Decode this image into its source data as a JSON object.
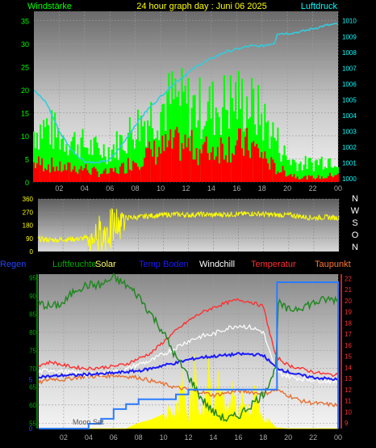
{
  "panel1": {
    "title": "24 hour graph day : Juni 06 2025",
    "left_label": "Windstärke",
    "right_label": "Luftdruck",
    "colors": {
      "title": "#ffff00",
      "left_label": "#00ff00",
      "right_label": "#00ffff",
      "gust": "#00ff00",
      "wind": "#ff0000",
      "pressure": "#33ccdd"
    }
  },
  "panel2": {
    "compass": [
      "N",
      "W",
      "S",
      "O",
      "N"
    ],
    "color": "#ffff00"
  },
  "panel3": {
    "labels": [
      {
        "text": "Regen",
        "color": "#2244ff"
      },
      {
        "text": "Luftfeuchte",
        "color": "#00aa00"
      },
      {
        "text": "Solar",
        "color": "#ffff66"
      },
      {
        "text": "Temp Boden",
        "color": "#1a1aff"
      },
      {
        "text": "Windchill",
        "color": "#ffffff"
      },
      {
        "text": "Temperatur",
        "color": "#ff3030"
      },
      {
        "text": "Taupunkt",
        "color": "#ff7733"
      }
    ],
    "moon_label": "Moon Set"
  },
  "chart_data": [
    {
      "type": "line",
      "x_ticks": [
        "02",
        "04",
        "06",
        "08",
        "10",
        "12",
        "14",
        "16",
        "18",
        "20",
        "22",
        "00"
      ],
      "y_left": {
        "ticks": [
          0,
          5,
          10,
          15,
          20,
          25,
          30,
          35
        ],
        "range": [
          0,
          37
        ]
      },
      "y_right": {
        "ticks": [
          1000,
          1001,
          1002,
          1003,
          1004,
          1005,
          1006,
          1007,
          1008,
          1009,
          1010
        ],
        "range": [
          999.8,
          1010.6
        ]
      },
      "series": [
        {
          "role": "pressure",
          "axis": "right",
          "x": [
            0,
            1,
            2,
            3,
            4,
            5,
            6,
            7,
            8,
            9,
            10,
            11,
            12,
            13,
            14,
            15,
            16,
            17,
            18,
            19,
            19.2,
            20,
            21,
            22,
            23,
            24
          ],
          "values": [
            1005.6,
            1004.8,
            1003.0,
            1001.8,
            1001.1,
            1001.0,
            1001.2,
            1002.2,
            1003.4,
            1004.4,
            1005.2,
            1006.0,
            1006.6,
            1007.2,
            1007.6,
            1008.0,
            1008.2,
            1008.4,
            1008.4,
            1008.6,
            1009.2,
            1009.2,
            1009.3,
            1009.5,
            1009.7,
            1009.8
          ]
        },
        {
          "role": "gust",
          "axis": "left",
          "x": [
            0,
            1,
            2,
            3,
            4,
            5,
            6,
            7,
            8,
            9,
            10,
            11,
            12,
            13,
            14,
            15,
            16,
            17,
            18,
            19,
            20,
            21,
            22,
            23,
            24
          ],
          "values": [
            11,
            12,
            10,
            9,
            8,
            7,
            7,
            9,
            12,
            14,
            16,
            18,
            17,
            16,
            16,
            17,
            18,
            17,
            14,
            10,
            5,
            4,
            4,
            5,
            5
          ]
        },
        {
          "role": "wind",
          "axis": "left",
          "x": [
            0,
            1,
            2,
            3,
            4,
            5,
            6,
            7,
            8,
            9,
            10,
            11,
            12,
            13,
            14,
            15,
            16,
            17,
            18,
            19,
            20,
            21,
            22,
            23,
            24
          ],
          "values": [
            4,
            4,
            3,
            3,
            3,
            2,
            2,
            3,
            5,
            6,
            7,
            8,
            8,
            7,
            7,
            8,
            8,
            8,
            6,
            3,
            2,
            1,
            1,
            1,
            2
          ]
        }
      ]
    },
    {
      "type": "line",
      "name": "",
      "y_ticks": [
        0,
        90,
        180,
        270,
        360
      ],
      "range": [
        0,
        360
      ],
      "x": [
        0,
        1,
        2,
        3,
        4,
        5,
        5.5,
        6,
        6.5,
        7,
        8,
        9,
        10,
        11,
        12,
        13,
        14,
        15,
        16,
        17,
        18,
        19,
        20,
        21,
        22,
        23,
        24
      ],
      "values": [
        85,
        80,
        82,
        85,
        92,
        95,
        150,
        120,
        200,
        230,
        235,
        245,
        250,
        255,
        250,
        255,
        250,
        255,
        255,
        260,
        255,
        250,
        250,
        240,
        230,
        235,
        230
      ]
    },
    {
      "type": "line",
      "y_left": {
        "ticks": [
          55,
          60,
          65,
          70,
          75,
          80,
          85,
          90,
          95
        ],
        "range": [
          53.5,
          96
        ]
      },
      "y_rain": {
        "ticks": [
          0,
          5
        ],
        "range": [
          0,
          15
        ]
      },
      "y_right": {
        "ticks": [
          9,
          10,
          11,
          12,
          13,
          14,
          15,
          16,
          17,
          18,
          19,
          20,
          21,
          22
        ],
        "range": [
          8.5,
          22.4
        ]
      },
      "series": [
        {
          "role": "humidity",
          "axis": "left",
          "x": [
            0,
            1,
            2,
            3,
            4,
            5,
            6,
            7,
            8,
            9,
            10,
            11,
            12,
            13,
            14,
            15,
            16,
            17,
            18,
            19,
            19.2,
            20,
            21,
            22,
            23,
            24
          ],
          "values": [
            88,
            87,
            88,
            92,
            93,
            93,
            95,
            93,
            90,
            85,
            80,
            73,
            68,
            62,
            58,
            56,
            57,
            60,
            63,
            70,
            88,
            86,
            87,
            88,
            89,
            89
          ]
        },
        {
          "role": "temperature",
          "axis": "right",
          "x": [
            0,
            1,
            2,
            3,
            4,
            5,
            6,
            7,
            8,
            9,
            10,
            11,
            12,
            13,
            14,
            15,
            16,
            17,
            18,
            19,
            20,
            21,
            22,
            23,
            24
          ],
          "values": [
            14.2,
            14.5,
            14.2,
            14.0,
            13.9,
            14.0,
            14.1,
            14.3,
            14.8,
            15.3,
            16.3,
            17.3,
            18.2,
            18.9,
            19.4,
            19.8,
            20.1,
            19.9,
            19.5,
            15.0,
            14.2,
            13.9,
            13.6,
            13.4,
            13.3
          ]
        },
        {
          "role": "windchill",
          "axis": "right",
          "x": [
            0,
            1,
            2,
            3,
            4,
            5,
            6,
            7,
            8,
            9,
            10,
            11,
            12,
            13,
            14,
            15,
            16,
            17,
            18,
            19,
            20,
            21,
            22,
            23,
            24
          ],
          "values": [
            13.6,
            13.8,
            13.6,
            13.5,
            13.3,
            13.5,
            13.6,
            13.8,
            14.3,
            14.6,
            15.2,
            15.8,
            16.4,
            16.8,
            17.0,
            17.5,
            17.8,
            17.6,
            17.2,
            13.6,
            13.2,
            13.0,
            12.9,
            12.8,
            12.7
          ]
        },
        {
          "role": "soil_temp",
          "axis": "right",
          "x": [
            0,
            1,
            2,
            3,
            4,
            5,
            6,
            7,
            8,
            9,
            10,
            11,
            12,
            13,
            14,
            15,
            16,
            17,
            18,
            19,
            20,
            21,
            22,
            23,
            24
          ],
          "values": [
            13.2,
            13.2,
            13.3,
            13.3,
            13.4,
            13.4,
            13.5,
            13.6,
            13.7,
            13.9,
            14.2,
            14.4,
            14.7,
            14.9,
            15.0,
            15.1,
            15.2,
            15.2,
            15.1,
            14.0,
            13.6,
            13.3,
            13.1,
            13.0,
            12.9
          ]
        },
        {
          "role": "dewpoint",
          "axis": "right",
          "x": [
            0,
            1,
            2,
            3,
            4,
            5,
            6,
            7,
            8,
            9,
            10,
            11,
            12,
            13,
            14,
            15,
            16,
            17,
            18,
            19,
            20,
            21,
            22,
            23,
            24
          ],
          "values": [
            12.6,
            13.0,
            12.9,
            13.1,
            13.2,
            13.2,
            13.3,
            13.2,
            13.1,
            12.8,
            12.5,
            12.2,
            12.0,
            11.8,
            11.5,
            11.7,
            11.9,
            11.8,
            11.6,
            12.0,
            11.5,
            11.0,
            10.8,
            10.7,
            10.6
          ]
        },
        {
          "role": "rain",
          "axis": "rain",
          "x": [
            0,
            3,
            4,
            5,
            6,
            7,
            8,
            10,
            11,
            12,
            16,
            17,
            18,
            19,
            19.1,
            24
          ],
          "values": [
            0,
            0,
            0.5,
            1,
            2,
            2.5,
            3,
            3,
            3.5,
            4,
            4,
            4,
            4,
            4,
            15,
            15
          ]
        },
        {
          "role": "solar",
          "axis": "right",
          "x": [
            0,
            7,
            8,
            9,
            10,
            11,
            11.5,
            12,
            12.5,
            13,
            13.5,
            14,
            14.5,
            15,
            15.5,
            16,
            16.5,
            17,
            17.5,
            18,
            18.5,
            19,
            20,
            24
          ],
          "values": [
            8.5,
            8.5,
            9.0,
            9.3,
            9.8,
            10.5,
            12.8,
            10.2,
            13.5,
            9.5,
            14.2,
            10.8,
            13.4,
            9.6,
            12.9,
            9.8,
            11.5,
            10.4,
            11.9,
            9.4,
            9.2,
            8.6,
            8.5,
            8.5
          ]
        }
      ]
    }
  ]
}
